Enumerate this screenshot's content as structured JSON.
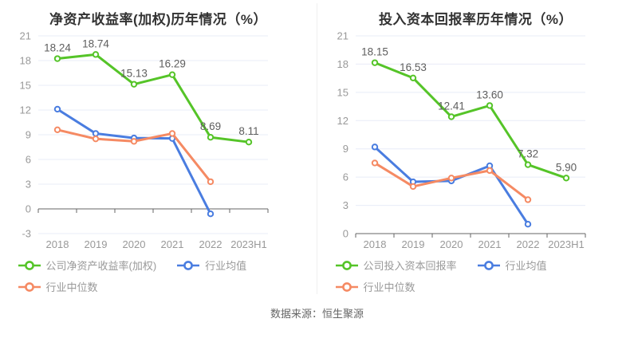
{
  "page": {
    "source_note": "数据来源：恒生聚源"
  },
  "colors": {
    "grid": "#e8ecf7",
    "axis": "#666666",
    "tick_label": "#999999",
    "data_label": "#5e5e5e",
    "title": "#333333",
    "legend_text": "#999999",
    "green": "#55c428",
    "blue": "#4a7de0",
    "orange": "#f58a63"
  },
  "chart_data": [
    {
      "type": "line",
      "title": "净资产收益率(加权)历年情况（%）",
      "categories": [
        "2018",
        "2019",
        "2020",
        "2021",
        "2022",
        "2023H1"
      ],
      "y_ticks": [
        21,
        18,
        15,
        12,
        9,
        6,
        3,
        0,
        -3
      ],
      "ylim": [
        -3,
        21
      ],
      "grid": true,
      "legend_position": "bottom",
      "series": [
        {
          "name": "公司净资产收益率(加权)",
          "color": "#55c428",
          "point_labels": true,
          "values": [
            18.24,
            18.74,
            15.13,
            16.29,
            8.69,
            8.11
          ]
        },
        {
          "name": "行业均值",
          "color": "#4a7de0",
          "point_labels": false,
          "values": [
            12.1,
            9.15,
            8.6,
            8.55,
            -0.6,
            null
          ]
        },
        {
          "name": "行业中位数",
          "color": "#f58a63",
          "point_labels": false,
          "values": [
            9.6,
            8.5,
            8.2,
            9.15,
            3.3,
            null
          ]
        }
      ]
    },
    {
      "type": "line",
      "title": "投入资本回报率历年情况（%）",
      "categories": [
        "2018",
        "2019",
        "2020",
        "2021",
        "2022",
        "2023H1"
      ],
      "y_ticks": [
        21,
        18,
        15,
        12,
        9,
        6,
        3,
        0
      ],
      "ylim": [
        0,
        21
      ],
      "grid": true,
      "legend_position": "bottom",
      "series": [
        {
          "name": "公司投入资本回报率",
          "color": "#55c428",
          "point_labels": true,
          "values": [
            18.15,
            16.53,
            12.41,
            13.6,
            7.32,
            5.9
          ]
        },
        {
          "name": "行业均值",
          "color": "#4a7de0",
          "point_labels": false,
          "values": [
            9.2,
            5.5,
            5.6,
            7.2,
            1.0,
            null
          ]
        },
        {
          "name": "行业中位数",
          "color": "#f58a63",
          "point_labels": false,
          "values": [
            7.5,
            5.0,
            5.9,
            6.7,
            3.6,
            null
          ]
        }
      ]
    }
  ]
}
